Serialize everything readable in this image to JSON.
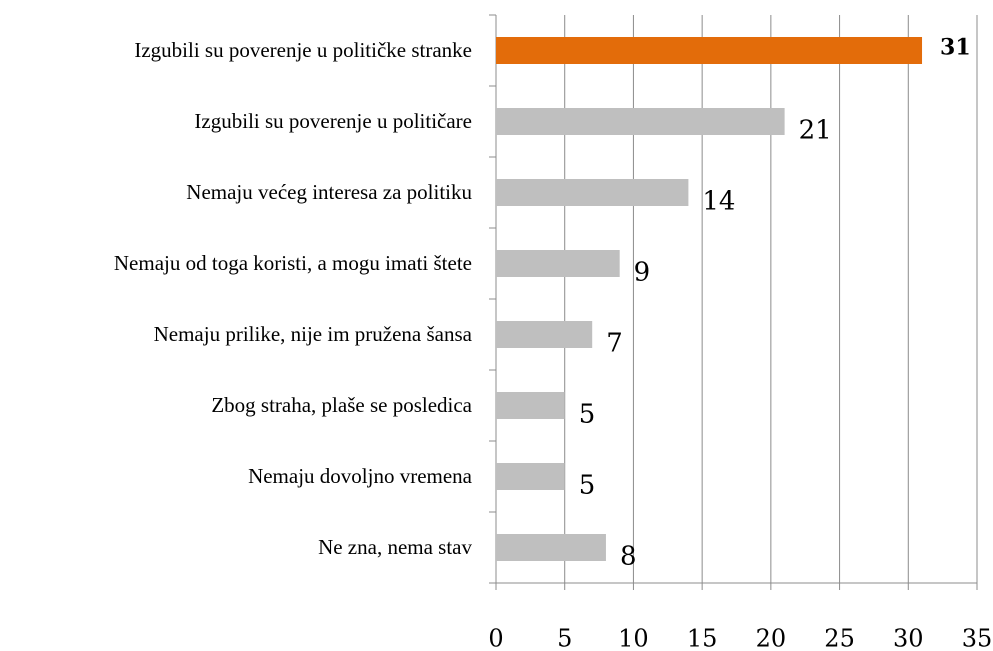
{
  "chart_data": {
    "type": "bar",
    "orientation": "horizontal",
    "categories": [
      "Izgubili su poverenje u političke stranke",
      "Izgubili su poverenje u političare",
      "Nemaju većeg interesa za politiku",
      "Nemaju od toga koristi, a mogu imati štete",
      "Nemaju prilike, nije im pružena šansa",
      "Zbog straha, plaše se posledica",
      "Nemaju dovoljno vremena",
      "Ne zna, nema stav"
    ],
    "values": [
      31,
      21,
      14,
      9,
      7,
      5,
      5,
      8
    ],
    "colors": [
      "#e36c0a",
      "#bfbfbf",
      "#bfbfbf",
      "#bfbfbf",
      "#bfbfbf",
      "#bfbfbf",
      "#bfbfbf",
      "#bfbfbf"
    ],
    "xlim": [
      0,
      35
    ],
    "xticks": [
      0,
      5,
      10,
      15,
      20,
      25,
      30,
      35
    ],
    "grid": true
  }
}
